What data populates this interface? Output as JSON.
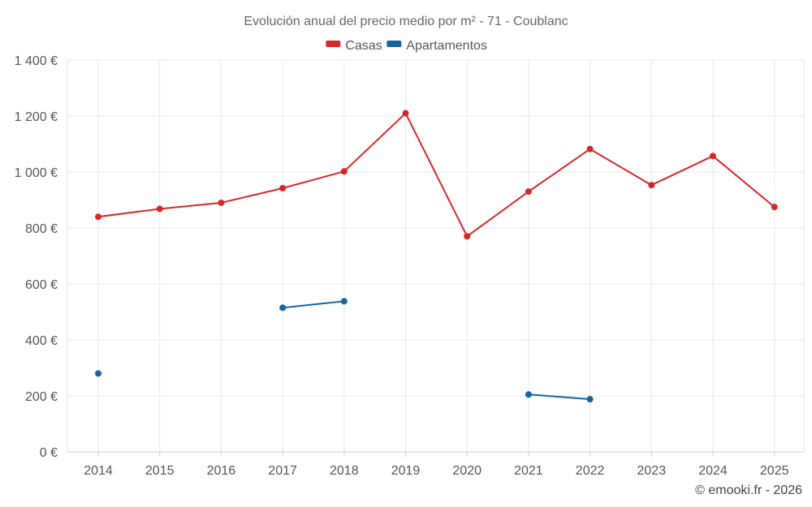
{
  "chart_data": {
    "type": "line",
    "title": "Evolución anual del precio medio por m² - 71 - Coublanc",
    "categories": [
      "2014",
      "2015",
      "2016",
      "2017",
      "2018",
      "2019",
      "2020",
      "2021",
      "2022",
      "2023",
      "2024",
      "2025"
    ],
    "series": [
      {
        "name": "Casas",
        "color": "#d62728",
        "values": [
          840,
          868,
          890,
          942,
          1002,
          1210,
          770,
          930,
          1082,
          953,
          1057,
          875
        ]
      },
      {
        "name": "Apartamentos",
        "color": "#1565a0",
        "values": [
          280,
          null,
          null,
          515,
          538,
          null,
          null,
          205,
          188,
          null,
          null,
          null
        ]
      }
    ],
    "y_ticks": [
      "0 €",
      "200 €",
      "400 €",
      "600 €",
      "800 €",
      "1 000 €",
      "1 200 €",
      "1 400 €"
    ],
    "ylim": [
      0,
      1400
    ],
    "grid": true,
    "legend_position": "top-center"
  },
  "credit": "© emooki.fr - 2026"
}
